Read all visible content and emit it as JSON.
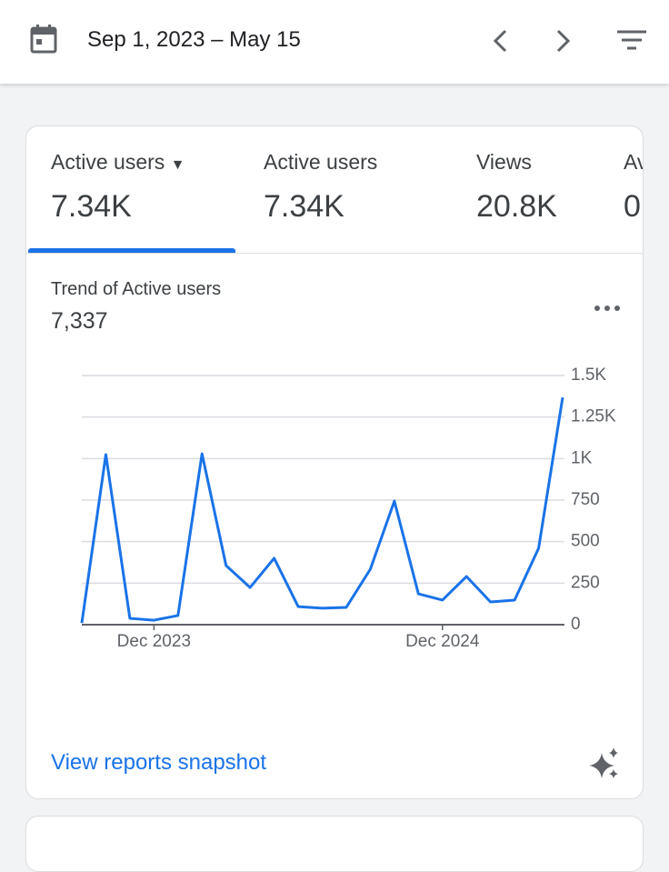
{
  "header": {
    "date_range": "Sep 1, 2023 – May 15"
  },
  "tabs": [
    {
      "label": "Active users",
      "value": "7.34K"
    },
    {
      "label": "Active users",
      "value": "7.34K"
    },
    {
      "label": "Views",
      "value": "20.8K"
    },
    {
      "label": "Av",
      "value": "0"
    }
  ],
  "chart_data": {
    "type": "line",
    "title": "Trend of Active users",
    "total": "7,337",
    "categories": [
      null,
      null,
      null,
      "Dec 2023",
      null,
      null,
      null,
      null,
      null,
      null,
      null,
      null,
      null,
      null,
      null,
      "Dec 2024",
      null,
      null,
      null,
      null,
      null
    ],
    "values": [
      10,
      1024,
      38,
      27,
      55,
      1029,
      356,
      224,
      400,
      109,
      99,
      104,
      334,
      744,
      186,
      148,
      290,
      137,
      148,
      460,
      1368
    ],
    "color": "#1a73e8",
    "ylim": [
      0,
      1500
    ],
    "yticks": [
      0,
      250,
      500,
      750,
      {
        "value": 1000,
        "label": "1K"
      },
      {
        "value": 1250,
        "label": "1.25K"
      },
      {
        "value": 1500,
        "label": "1.5K"
      }
    ],
    "grid": true
  },
  "link": "View reports snapshot"
}
